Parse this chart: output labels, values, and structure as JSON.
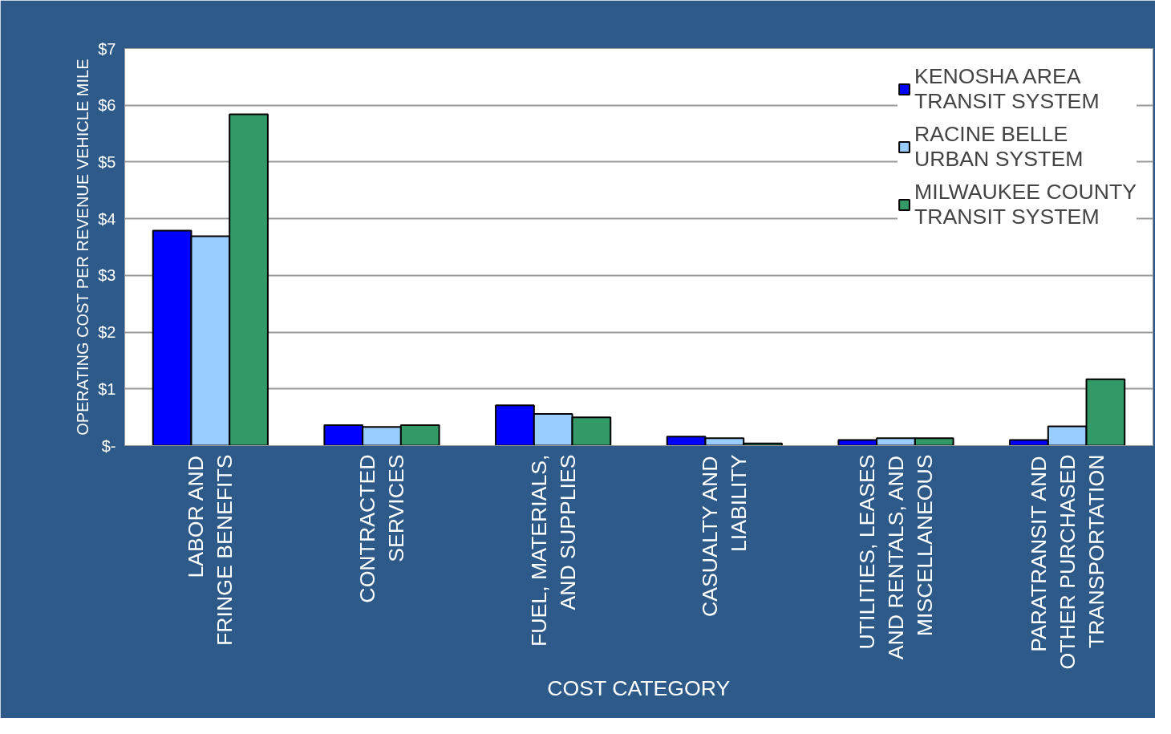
{
  "chart_data": {
    "type": "bar",
    "xlabel": "COST CATEGORY",
    "ylabel": "OPERATING COST PER REVENUE VEHICLE MILE",
    "categories": [
      "LABOR AND\nFRINGE BENEFITS",
      "CONTRACTED\nSERVICES",
      "FUEL, MATERIALS,\nAND SUPPLIES",
      "CASUALTY AND\nLIABILITY",
      "UTILITIES, LEASES\nAND RENTALS, AND\nMISCELLANEOUS",
      "PARATRANSIT AND\nOTHER PURCHASED\nTRANSPORTATION"
    ],
    "series": [
      {
        "name": "KENOSHA AREA\nTRANSIT SYSTEM",
        "color": "#0000ff",
        "values": [
          3.79,
          0.36,
          0.71,
          0.16,
          0.1,
          0.1
        ]
      },
      {
        "name": "RACINE BELLE\nURBAN SYSTEM",
        "color": "#99ccff",
        "values": [
          3.69,
          0.33,
          0.56,
          0.13,
          0.13,
          0.34
        ]
      },
      {
        "name": "MILWAUKEE COUNTY\nTRANSIT SYSTEM",
        "color": "#339966",
        "values": [
          5.84,
          0.36,
          0.5,
          0.04,
          0.13,
          1.17
        ]
      }
    ],
    "ylim": [
      0,
      7
    ],
    "yticks": [
      {
        "value": 0,
        "label": "$-"
      },
      {
        "value": 1,
        "label": "$1"
      },
      {
        "value": 2,
        "label": "$2"
      },
      {
        "value": 3,
        "label": "$3"
      },
      {
        "value": 4,
        "label": "$4"
      },
      {
        "value": 5,
        "label": "$5"
      },
      {
        "value": 6,
        "label": "$6"
      },
      {
        "value": 7,
        "label": "$7"
      }
    ],
    "grid": "y",
    "legend": "top right"
  }
}
